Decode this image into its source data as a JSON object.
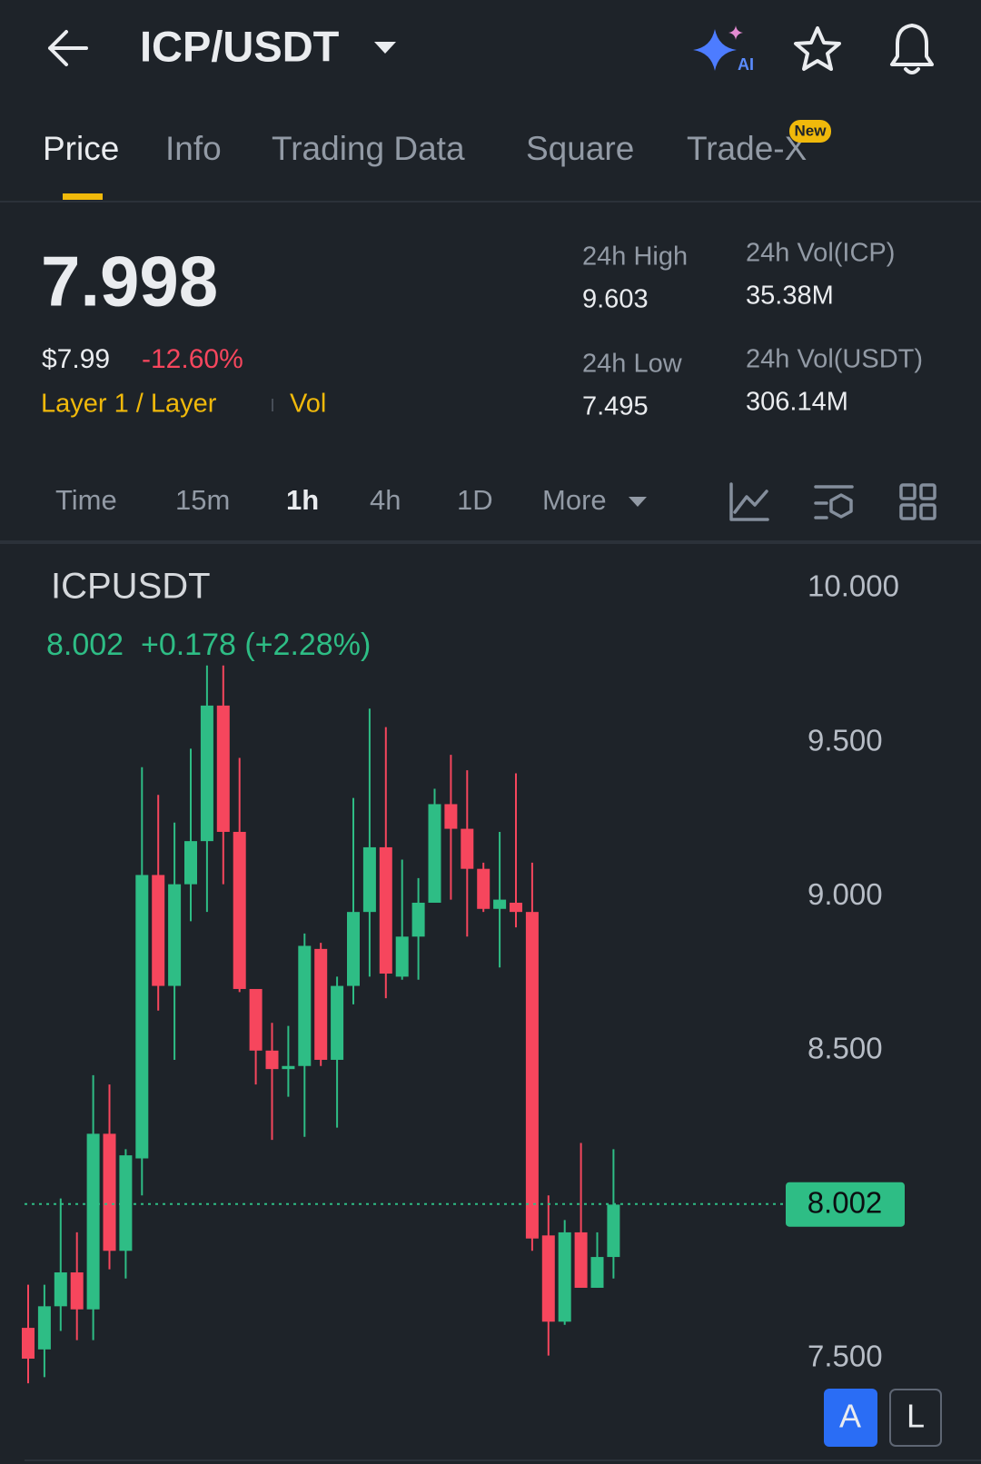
{
  "header": {
    "pair": "ICP/USDT"
  },
  "tabs": [
    "Price",
    "Info",
    "Trading Data",
    "Square",
    "Trade-X"
  ],
  "badge": "New",
  "price": {
    "last": "7.998",
    "usd": "$7.99",
    "change": "-12.60%",
    "tag": "Layer 1 / Layer",
    "vol": "Vol"
  },
  "stats": [
    {
      "label": "24h High",
      "value": "9.603"
    },
    {
      "label": "24h Low",
      "value": "7.495"
    },
    {
      "label": "24h Vol(ICP)",
      "value": "35.38M"
    },
    {
      "label": "24h Vol(USDT)",
      "value": "306.14M"
    }
  ],
  "timeframes": [
    "Time",
    "15m",
    "1h",
    "4h",
    "1D",
    "More"
  ],
  "buttons": [
    "A",
    "L"
  ],
  "chart_data": {
    "type": "candlestick",
    "title": "ICPUSDT",
    "subtitle": "8.002  +0.178 (+2.28%)",
    "up_color": "#2ebd85",
    "down_color": "#f6465d",
    "grid": false,
    "ylim": [
      7.5,
      10
    ],
    "yticks": [
      {
        "value": 10,
        "label": "10.000"
      },
      {
        "value": 9.5,
        "label": "9.500"
      },
      {
        "value": 9,
        "label": "9.000"
      },
      {
        "value": 8.5,
        "label": "8.500"
      },
      {
        "value": 7.5,
        "label": "7.500"
      }
    ],
    "last_price": 8.002,
    "open": [
      7.6,
      7.53,
      7.67,
      7.78,
      7.66,
      8.23,
      7.85,
      8.15,
      9.07,
      8.71,
      9.04,
      9.18,
      9.62,
      9.21,
      8.7,
      8.5,
      8.44,
      8.45,
      8.83,
      8.47,
      8.71,
      8.95,
      9.16,
      8.74,
      8.87,
      8.98,
      9.3,
      9.22,
      9.09,
      8.96,
      8.98,
      8.95,
      7.9,
      7.62,
      7.91,
      7.73,
      7.83
    ],
    "high": [
      7.74,
      7.74,
      8.02,
      7.91,
      8.42,
      8.39,
      8.18,
      9.42,
      9.33,
      9.24,
      9.48,
      9.75,
      9.75,
      9.45,
      8.7,
      8.59,
      8.58,
      8.88,
      8.85,
      8.74,
      9.32,
      9.61,
      9.55,
      9.12,
      9.06,
      9.35,
      9.46,
      9.41,
      9.11,
      9.21,
      9.4,
      9.11,
      8.03,
      7.95,
      8.2,
      7.91,
      8.18
    ],
    "low": [
      7.42,
      7.44,
      7.59,
      7.56,
      7.56,
      7.79,
      7.76,
      8.03,
      8.63,
      8.47,
      8.92,
      8.95,
      9.04,
      8.69,
      8.39,
      8.21,
      8.35,
      8.22,
      8.45,
      8.25,
      8.65,
      8.74,
      8.67,
      8.73,
      8.73,
      8.98,
      8.99,
      8.87,
      8.95,
      8.77,
      8.9,
      7.85,
      7.51,
      7.61,
      7.73,
      7.73,
      7.76
    ],
    "close": [
      7.5,
      7.67,
      7.78,
      7.66,
      8.23,
      7.85,
      8.16,
      9.07,
      8.71,
      9.04,
      9.18,
      9.62,
      9.21,
      8.7,
      8.5,
      8.44,
      8.45,
      8.84,
      8.47,
      8.71,
      8.95,
      9.16,
      8.75,
      8.87,
      8.98,
      9.3,
      9.22,
      9.09,
      8.96,
      8.99,
      8.95,
      7.89,
      7.62,
      7.91,
      7.73,
      7.83,
      8.0
    ]
  }
}
